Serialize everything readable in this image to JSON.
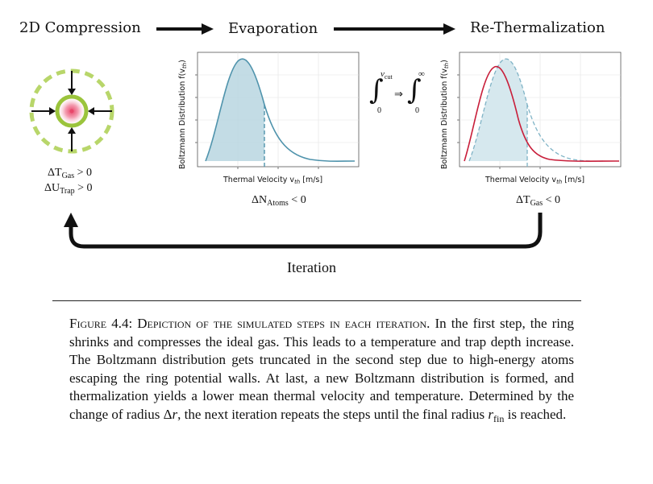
{
  "steps": {
    "compression": "2D Compression",
    "evaporation": "Evaporation",
    "rethermalization": "Re-Thermalization"
  },
  "compression_conditions": {
    "gas_lhs": "ΔT",
    "gas_sub": "Gas",
    "gas_rhs": " > 0",
    "trap_lhs": "ΔU",
    "trap_sub": "Trap",
    "trap_rhs": " > 0"
  },
  "plot_left": {
    "ylabel": "Boltzmann Distribution f(v",
    "ylabel_sub": "th",
    "xlabel": "Thermal Velocity v",
    "xlabel_sub": "th",
    "xlabel_unit": " [m/s]",
    "condition_lhs": "ΔN",
    "condition_sub": "Atoms",
    "condition_rhs": " < 0"
  },
  "plot_right": {
    "ylabel": "Boltzmann Distribution f(v",
    "ylabel_sub": "th",
    "xlabel": "Thermal Velocity v",
    "xlabel_sub": "th",
    "xlabel_unit": " [m/s]",
    "condition_lhs": "ΔT",
    "condition_sub": "Gas",
    "condition_rhs": " < 0"
  },
  "integral": {
    "upper_left": "v",
    "upper_left_sub": "cut",
    "lower_left": "0",
    "implies": "⇒",
    "upper_right": "∞",
    "lower_right": "0"
  },
  "iteration_label": "Iteration",
  "caption": {
    "lead": "Figure 4.4: Depiction of the simulated steps in each iteration.",
    "body_1": "In the first step, the ring shrinks and compresses the ideal gas. This leads to a temperature and trap depth increase. The Boltzmann distribution gets truncated in the second step due to high-energy atoms escaping the ring potential walls. At last, a new Boltzmann distribution is formed, and thermalization yields a lower mean thermal velocity and temperature. Determined by the change of radius Δ",
    "body_r": "r",
    "body_2": ", the next iteration repeats the steps until the final radius ",
    "body_rfin": "r",
    "body_rfin_sub": "fin",
    "body_3": " is reached."
  },
  "colors": {
    "teal": "#4f93ac",
    "teal_fill": "#b9d6e0",
    "red": "#c81e3a",
    "ring_green": "#9bc43c",
    "ring_dashed": "#b8d66a",
    "text": "#111111"
  },
  "icons": [
    "ring-trap-icon",
    "inward-arrow-icon",
    "right-arrow-icon",
    "loop-arrow-icon"
  ]
}
